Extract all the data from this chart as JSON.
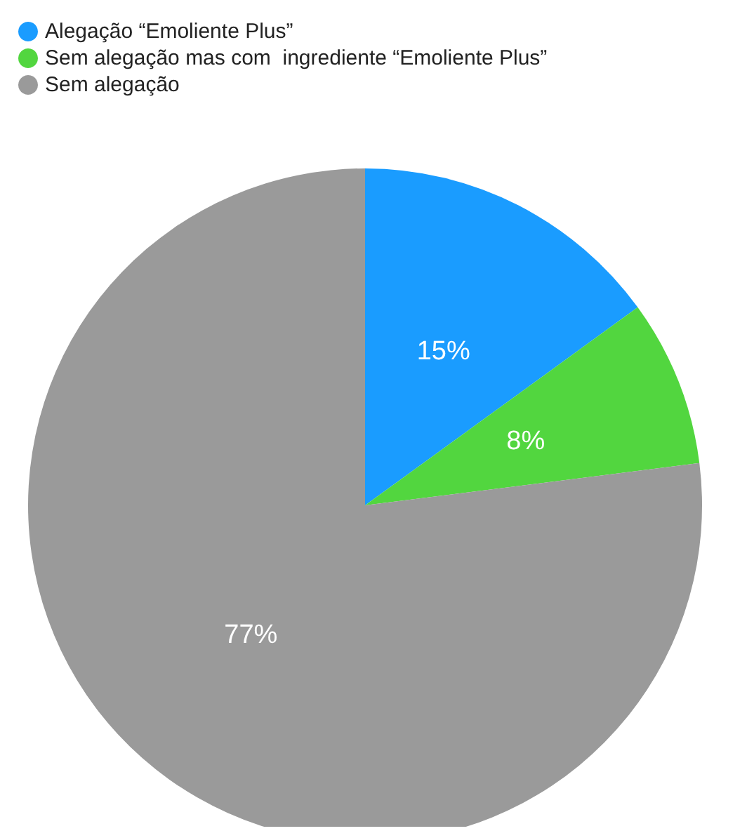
{
  "chart_data": {
    "type": "pie",
    "categories": [
      "Alegação “Emoliente Plus”",
      "Sem alegação mas com  ingrediente “Emoliente Plus”",
      "Sem alegação"
    ],
    "values": [
      15,
      8,
      77
    ],
    "colors": [
      "#1a9cff",
      "#52d63f",
      "#9a9a9a"
    ],
    "value_labels": [
      "15%",
      "8%",
      "77%"
    ],
    "legend": "top left"
  }
}
